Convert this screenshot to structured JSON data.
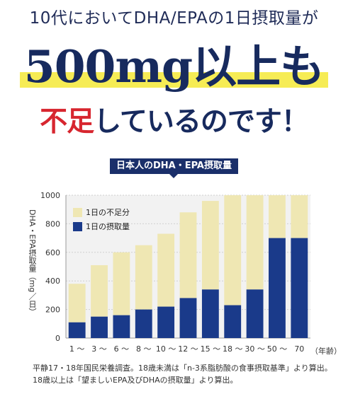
{
  "headline": {
    "line1": "10代においてDHA/EPAの1日摂取量が",
    "line2": "500mg以上も",
    "line3_red": "不足",
    "line3_rest": "しているのです！"
  },
  "chart_data": {
    "type": "bar",
    "title": "日本人のDHA・EPA摂取量",
    "ylabel": "DHA・EPA摂取量（mg／日）",
    "xunit": "（年齢）",
    "ylim": [
      0,
      1000
    ],
    "yticks": [
      0,
      200,
      400,
      600,
      800,
      1000
    ],
    "grid": true,
    "stacked": true,
    "legend_position": "top-left",
    "categories": [
      "1 〜 2",
      "3 〜 5",
      "6 〜 7",
      "8 〜 9",
      "10 〜 11",
      "12 〜 14",
      "15 〜 17",
      "18 〜 29",
      "30 〜 49",
      "50 〜 69",
      "70 〜"
    ],
    "category_label_parts": [
      "1 〜",
      "3 〜",
      "6 〜",
      "8 〜",
      "10 〜",
      "12 〜",
      "15 〜",
      "18 〜",
      "30 〜",
      "50 〜",
      "70"
    ],
    "series": [
      {
        "name": "1日の摂取量",
        "color": "#1a3a8a",
        "values": [
          110,
          150,
          160,
          200,
          220,
          280,
          340,
          230,
          340,
          700,
          700
        ]
      },
      {
        "name": "1日の不足分",
        "color": "#efe7b3",
        "values": [
          270,
          360,
          440,
          450,
          510,
          600,
          620,
          770,
          660,
          300,
          300
        ]
      }
    ]
  },
  "legend": {
    "shortage_label": "1日の不足分",
    "intake_label": "1日の摂取量",
    "shortage_color": "#efe7b3",
    "intake_color": "#1a3a8a"
  },
  "note": {
    "line1": "平静17・18年国民栄養調査。18歳未満は「n-3系脂肪酸の食事摂取基準」より算出。",
    "line2": "18歳以上は「望ましいEPA及びDHAの摂取量」より算出。"
  }
}
